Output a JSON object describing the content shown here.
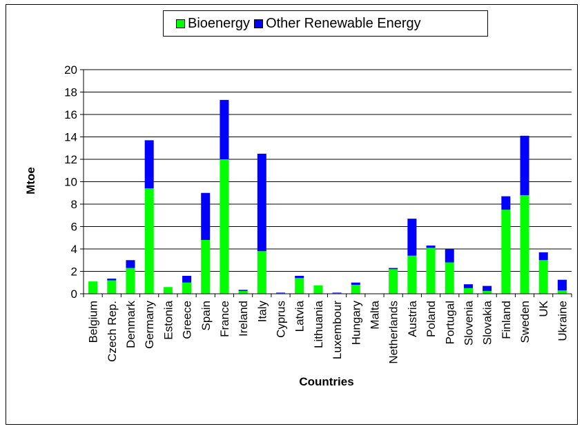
{
  "chart_data": {
    "type": "bar",
    "stacked": true,
    "xlabel": "Countries",
    "ylabel": "Mtoe",
    "ylim": [
      0,
      20
    ],
    "ytick_step": 2,
    "grid": true,
    "legend_position": "top",
    "categories": [
      "Belgium",
      "Czech Rep.",
      "Denmark",
      "Germany",
      "Estonia",
      "Greece",
      "Spain",
      "France",
      "Ireland",
      "Italy",
      "Cyprus",
      "Latvia",
      "Lithuania",
      "Luxembour",
      "Hungary",
      "Malta",
      "Netherlands",
      "Austria",
      "Poland",
      "Portugal",
      "Slovenia",
      "Slovakia",
      "Finland",
      "Sweden",
      "UK",
      "Ukraine"
    ],
    "series": [
      {
        "name": "Bioenergy",
        "color": "#00ff00",
        "values": [
          1.1,
          1.2,
          2.3,
          9.4,
          0.6,
          1.0,
          4.8,
          12.0,
          0.25,
          3.8,
          0.05,
          1.4,
          0.75,
          0.05,
          0.8,
          0.0,
          2.2,
          3.4,
          4.1,
          2.8,
          0.5,
          0.25,
          7.5,
          8.8,
          3.0,
          0.3
        ]
      },
      {
        "name": "Other Renewable Energy",
        "color": "#0000ff",
        "values": [
          0.0,
          0.15,
          0.7,
          4.3,
          0.0,
          0.6,
          4.2,
          5.3,
          0.1,
          8.7,
          0.05,
          0.2,
          0.0,
          0.05,
          0.2,
          0.0,
          0.1,
          3.3,
          0.2,
          1.2,
          0.35,
          0.45,
          1.2,
          5.3,
          0.7,
          0.95
        ]
      }
    ]
  },
  "colors": {
    "plot_background": "#ffffff",
    "gridline": "#000000",
    "axis": "#000000"
  }
}
